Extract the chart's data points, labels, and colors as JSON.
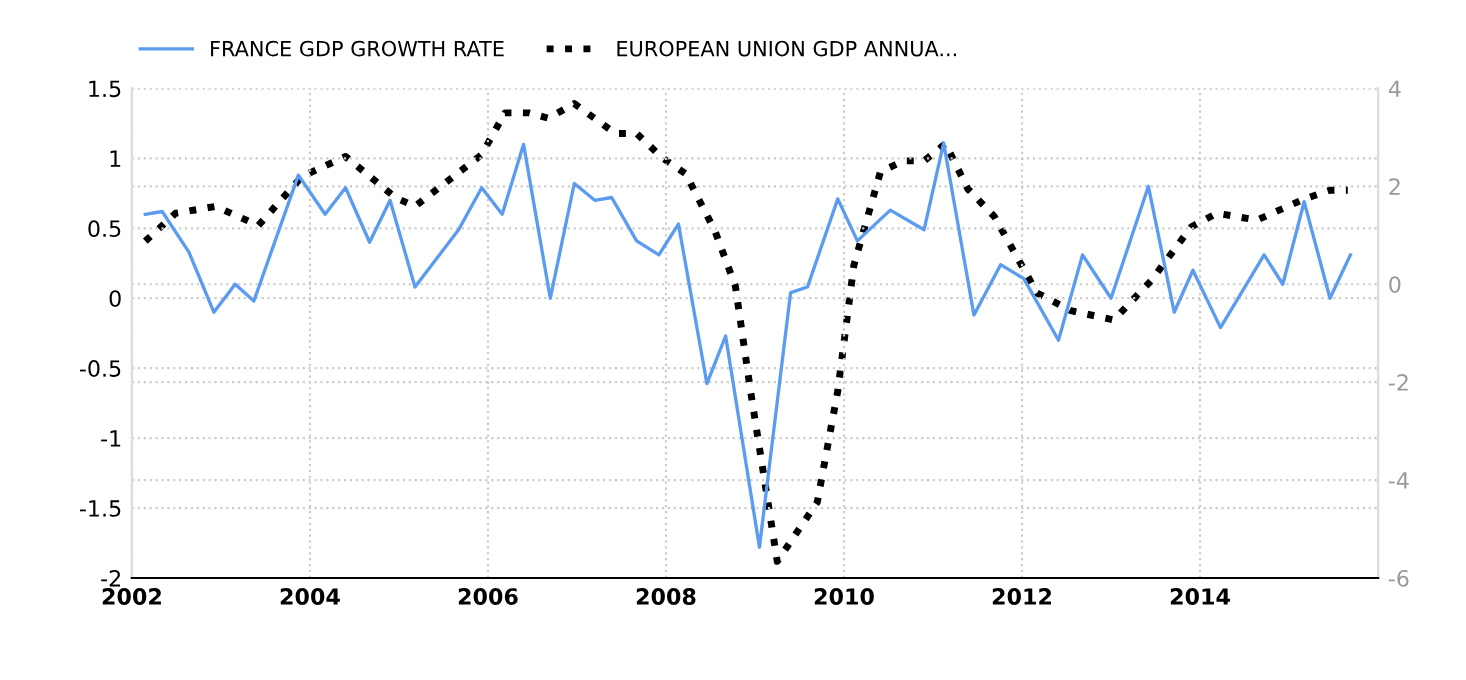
{
  "chart_data": {
    "type": "line",
    "grid": true,
    "legend": "top left",
    "xlim": [
      2002,
      2016
    ],
    "xticks": [
      2002,
      2004,
      2006,
      2008,
      2010,
      2012,
      2014
    ],
    "ylim": [
      -2,
      1.5
    ],
    "yticks": [
      {
        "value": -2,
        "label": "-2"
      },
      {
        "value": -1.5,
        "label": "-1.5"
      },
      {
        "value": -1,
        "label": "-1"
      },
      {
        "value": -0.5,
        "label": "-0.5"
      },
      0,
      0.5,
      1,
      1.5
    ],
    "y2lim": [
      -6,
      4
    ],
    "y2ticks": [
      {
        "value": -6,
        "label": "-6"
      },
      {
        "value": -4,
        "label": "-4"
      },
      {
        "value": -2,
        "label": "-2"
      },
      0,
      2,
      4
    ],
    "series": [
      {
        "name": "FRANCE GDP GROWTH RATE",
        "color": "#5b9bf0",
        "line_style": "solid",
        "x": [
          2002.15,
          2002.34,
          2002.64,
          2002.92,
          2003.16,
          2003.37,
          2003.87,
          2004.17,
          2004.4,
          2004.67,
          2004.9,
          2005.18,
          2005.67,
          2005.93,
          2006.16,
          2006.4,
          2006.7,
          2006.97,
          2007.2,
          2007.39,
          2007.67,
          2007.92,
          2008.14,
          2008.46,
          2008.67,
          2009.05,
          2009.4,
          2009.59,
          2009.93,
          2010.15,
          2010.52,
          2010.9,
          2011.12,
          2011.46,
          2011.76,
          2012.02,
          2012.41,
          2012.68,
          2013.0,
          2013.42,
          2013.71,
          2013.92,
          2014.23,
          2014.72,
          2014.93,
          2015.17,
          2015.46,
          2015.69
        ],
        "values": [
          0.6,
          0.62,
          0.33,
          -0.1,
          0.1,
          -0.02,
          0.88,
          0.6,
          0.79,
          0.4,
          0.7,
          0.08,
          0.49,
          0.79,
          0.6,
          1.1,
          0.0,
          0.82,
          0.7,
          0.72,
          0.41,
          0.31,
          0.53,
          -0.61,
          -0.27,
          -1.78,
          0.04,
          0.08,
          0.71,
          0.41,
          0.63,
          0.49,
          1.11,
          -0.12,
          0.24,
          0.14,
          -0.3,
          0.31,
          0.0,
          0.8,
          -0.1,
          0.2,
          -0.21,
          0.31,
          0.1,
          0.69,
          0.0,
          0.31
        ]
      },
      {
        "name": "EUROPEAN UNION GDP ANNUA...",
        "color": "#000000",
        "line_style": "dotted",
        "axis": "y2",
        "x": [
          2002.15,
          2002.49,
          2002.94,
          2003.42,
          2003.91,
          2004.4,
          2004.96,
          2005.18,
          2005.93,
          2006.19,
          2006.46,
          2006.68,
          2006.97,
          2007.43,
          2007.67,
          2007.96,
          2008.22,
          2008.55,
          2008.78,
          2008.95,
          2009.25,
          2009.7,
          2009.93,
          2010.11,
          2010.41,
          2010.67,
          2010.9,
          2011.14,
          2011.39,
          2011.69,
          2012.17,
          2012.55,
          2013.03,
          2013.45,
          2013.9,
          2014.19,
          2014.64,
          2015.17,
          2015.46,
          2015.66
        ],
        "values": [
          0.88,
          1.45,
          1.59,
          1.2,
          2.2,
          2.61,
          1.77,
          1.59,
          2.65,
          3.5,
          3.5,
          3.39,
          3.69,
          3.08,
          3.08,
          2.58,
          2.26,
          1.09,
          -0.04,
          -2.18,
          -5.66,
          -4.45,
          -2.18,
          0.38,
          2.3,
          2.52,
          2.52,
          2.87,
          1.95,
          1.38,
          -0.18,
          -0.54,
          -0.73,
          0.07,
          1.17,
          1.45,
          1.31,
          1.74,
          1.92,
          1.92
        ]
      }
    ]
  }
}
